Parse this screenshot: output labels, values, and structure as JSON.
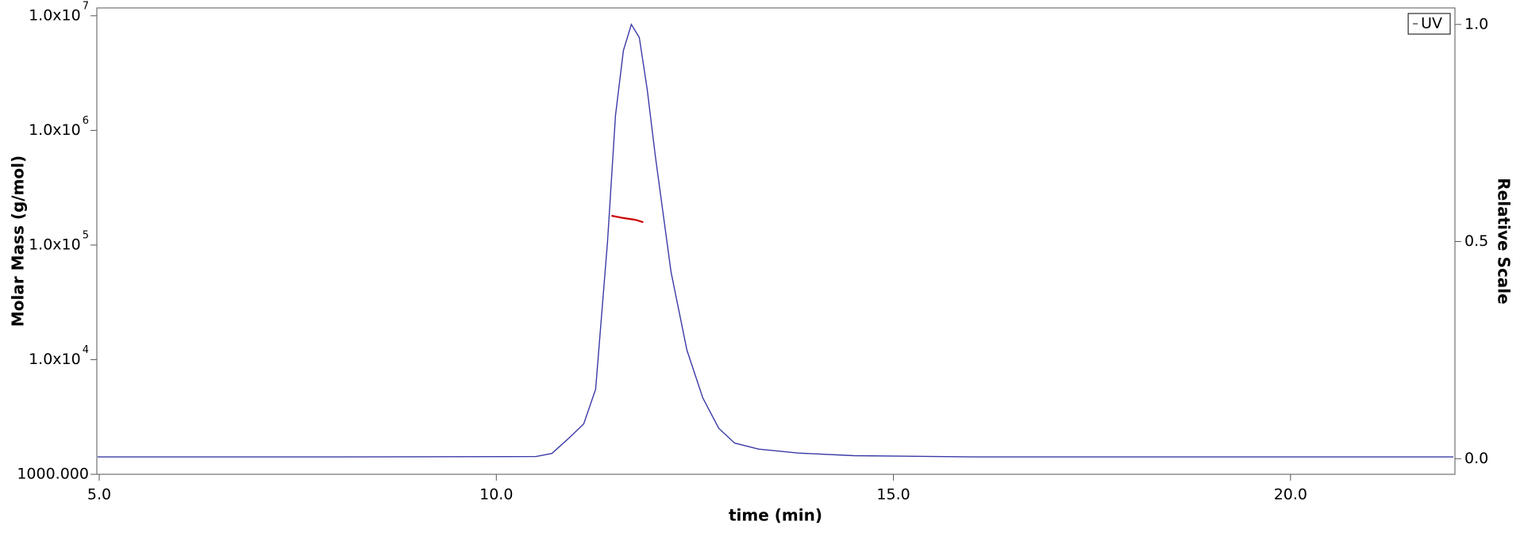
{
  "chart_data": {
    "type": "line",
    "x_label": "time (min)",
    "y_label": "Molar Mass (g/mol)",
    "y2_label": "Relative Scale",
    "xlim": [
      4.97,
      22.07
    ],
    "xticks": [
      {
        "value": 5,
        "label": "5.0"
      },
      {
        "value": 10,
        "label": "10.0"
      },
      {
        "value": 15,
        "label": "15.0"
      },
      {
        "value": 20,
        "label": "20.0"
      }
    ],
    "ylim": [
      1000,
      11700000
    ],
    "yscale": "log",
    "yticks": [
      {
        "value": 1000,
        "label": "1000.000"
      },
      {
        "value": 10000,
        "label": "1.0x10",
        "exponent": "4"
      },
      {
        "value": 100000,
        "label": "1.0x10",
        "exponent": "5"
      },
      {
        "value": 1000000,
        "label": "1.0x10",
        "exponent": "6"
      },
      {
        "value": 10000000,
        "label": "1.0x10",
        "exponent": "7"
      }
    ],
    "y2lim": [
      -0.036,
      1.038
    ],
    "y2ticks": [
      {
        "value": 0,
        "label": "0.0"
      },
      {
        "value": 0.5,
        "label": "0.5"
      },
      {
        "value": 1,
        "label": "1.0"
      }
    ],
    "legend": "upper right",
    "series": [
      {
        "color": "#cc0000",
        "x": [
          11.45,
          11.6,
          11.75,
          11.85
        ],
        "values": [
          180000,
          172000,
          166000,
          158000
        ]
      },
      {
        "name": "UV",
        "color": "#3a3aa8",
        "axis": "y2",
        "x": [
          4.98,
          8,
          10.5,
          10.7,
          10.9,
          11.1,
          11.25,
          11.4,
          11.5,
          11.6,
          11.7,
          11.8,
          11.9,
          12.0,
          12.2,
          12.4,
          12.6,
          12.8,
          13.0,
          13.3,
          13.8,
          14.5,
          16,
          19,
          22.05
        ],
        "values": [
          0.004,
          0.004,
          0.005,
          0.012,
          0.045,
          0.08,
          0.16,
          0.5,
          0.79,
          0.94,
          1.0,
          0.97,
          0.85,
          0.7,
          0.43,
          0.25,
          0.14,
          0.07,
          0.036,
          0.022,
          0.013,
          0.007,
          0.004,
          0.004,
          0.004
        ]
      }
    ]
  }
}
